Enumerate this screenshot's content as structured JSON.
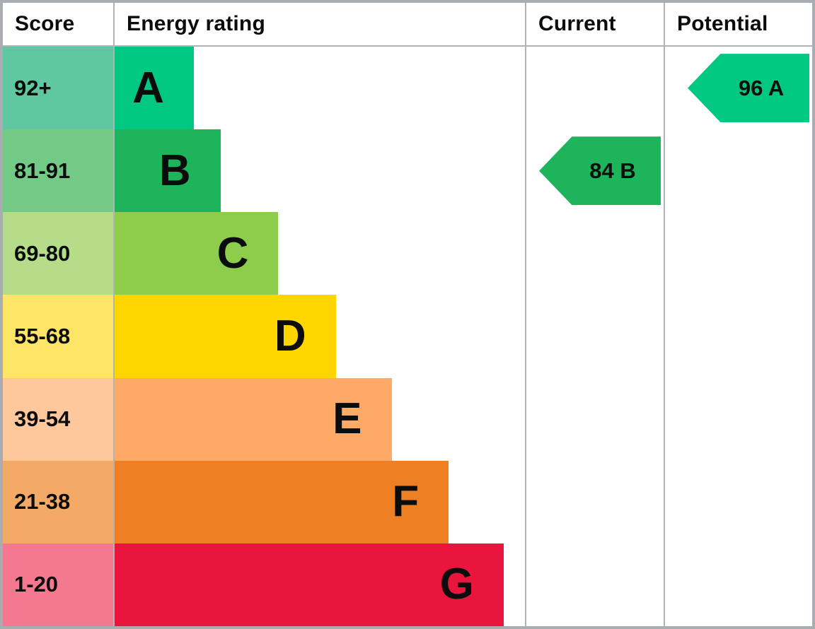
{
  "header": {
    "score": "Score",
    "energy_rating": "Energy rating",
    "current": "Current",
    "potential": "Potential"
  },
  "bands": [
    {
      "letter": "A",
      "score": "92+",
      "bar_color": "#00c782",
      "score_color": "#5fc7a1",
      "bar_width_pct": 19.3
    },
    {
      "letter": "B",
      "score": "81-91",
      "bar_color": "#1eb45b",
      "score_color": "#73ca87",
      "bar_width_pct": 25.8
    },
    {
      "letter": "C",
      "score": "69-80",
      "bar_color": "#8ecd4c",
      "score_color": "#b5dc88",
      "bar_width_pct": 39.9
    },
    {
      "letter": "D",
      "score": "55-68",
      "bar_color": "#ffd500",
      "score_color": "#ffe566",
      "bar_width_pct": 53.9
    },
    {
      "letter": "E",
      "score": "39-54",
      "bar_color": "#fcaa66",
      "score_color": "#ffc79c",
      "bar_width_pct": 67.5
    },
    {
      "letter": "F",
      "score": "21-38",
      "bar_color": "#ee8023",
      "score_color": "#f2aa66",
      "bar_width_pct": 81.4
    },
    {
      "letter": "G",
      "score": "1-20",
      "bar_color": "#e9153c",
      "score_color": "#f37890",
      "bar_width_pct": 94.8
    }
  ],
  "current": {
    "label": "84 B",
    "score": 84,
    "band": "B",
    "color": "#1eb45b"
  },
  "potential": {
    "label": "96 A",
    "score": 96,
    "band": "A",
    "color": "#00c782"
  },
  "colors": {
    "border_outer": "#a9adb2",
    "grid_line": "#b1b4b6",
    "text": "#0b0c0c"
  },
  "chart_data": {
    "type": "bar",
    "title": "Energy rating",
    "categories": [
      "A",
      "B",
      "C",
      "D",
      "E",
      "F",
      "G"
    ],
    "score_ranges": [
      "92+",
      "81-91",
      "69-80",
      "55-68",
      "39-54",
      "21-38",
      "1-20"
    ],
    "bar_width_pct": [
      19.3,
      25.8,
      39.9,
      53.9,
      67.5,
      81.4,
      94.8
    ],
    "series": [
      {
        "name": "Current",
        "band": "B",
        "value": 84
      },
      {
        "name": "Potential",
        "band": "A",
        "value": 96
      }
    ],
    "legend_position": "none",
    "grid": false,
    "orientation": "horizontal"
  }
}
